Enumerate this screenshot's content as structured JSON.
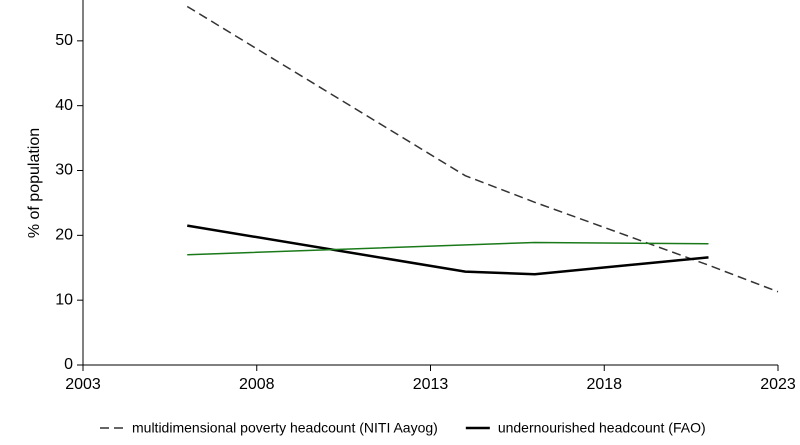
{
  "chart_data": {
    "type": "line",
    "y_label": "% of population",
    "xlim": [
      2003,
      2023
    ],
    "xticks": [
      2003,
      2008,
      2013,
      2018,
      2023
    ],
    "ylim": [
      0,
      56.3
    ],
    "yticks": [
      0,
      10,
      20,
      30,
      40,
      50
    ],
    "series": [
      {
        "name": "multidimensional poverty headcount (NITI Aayog)",
        "color": "#333333",
        "dashed": true,
        "width": 1.5,
        "x": [
          2006,
          2014,
          2016,
          2021,
          2023
        ],
        "values": [
          55.3,
          29.2,
          25.1,
          15.4,
          11.3
        ]
      },
      {
        "name": "undernourished headcount (FAO)",
        "color": "#000000",
        "dashed": false,
        "width": 2.5,
        "x": [
          2006,
          2014,
          2016,
          2021
        ],
        "values": [
          21.5,
          14.4,
          14.0,
          16.6
        ]
      },
      {
        "color": "#1a7a1a",
        "dashed": false,
        "width": 1.5,
        "x": [
          2006,
          2016,
          2021
        ],
        "values": [
          17.0,
          18.9,
          18.7
        ]
      }
    ]
  }
}
